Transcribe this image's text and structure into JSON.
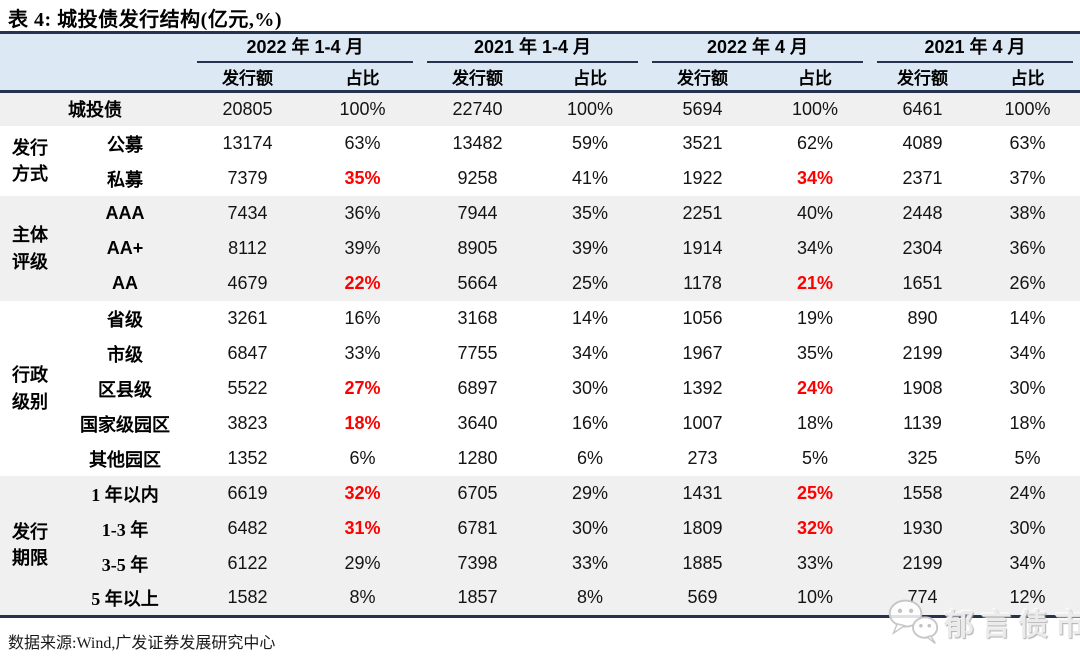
{
  "title": "表 4:  城投债发行结构(亿元,%)",
  "header": {
    "groups": [
      "2022 年 1-4 月",
      "2021 年 1-4 月",
      "2022 年 4 月",
      "2021 年 4 月"
    ],
    "sub": [
      "发行额",
      "占比"
    ]
  },
  "table": {
    "groups": [
      {
        "category": "",
        "rows": [
          {
            "label": "城投债",
            "values": [
              "20805",
              "100%",
              "22740",
              "100%",
              "5694",
              "100%",
              "6461",
              "100%"
            ],
            "red": []
          }
        ]
      },
      {
        "category": "发行\n方式",
        "rows": [
          {
            "label": "公募",
            "values": [
              "13174",
              "63%",
              "13482",
              "59%",
              "3521",
              "62%",
              "4089",
              "63%"
            ],
            "red": []
          },
          {
            "label": "私募",
            "values": [
              "7379",
              "35%",
              "9258",
              "41%",
              "1922",
              "34%",
              "2371",
              "37%"
            ],
            "red": [
              1,
              5
            ]
          }
        ]
      },
      {
        "category": "主体\n评级",
        "rows": [
          {
            "label": "AAA",
            "values": [
              "7434",
              "36%",
              "7944",
              "35%",
              "2251",
              "40%",
              "2448",
              "38%"
            ],
            "red": []
          },
          {
            "label": "AA+",
            "values": [
              "8112",
              "39%",
              "8905",
              "39%",
              "1914",
              "34%",
              "2304",
              "36%"
            ],
            "red": []
          },
          {
            "label": "AA",
            "values": [
              "4679",
              "22%",
              "5664",
              "25%",
              "1178",
              "21%",
              "1651",
              "26%"
            ],
            "red": [
              1,
              5
            ]
          }
        ]
      },
      {
        "category": "行政\n级别",
        "rows": [
          {
            "label": "省级",
            "values": [
              "3261",
              "16%",
              "3168",
              "14%",
              "1056",
              "19%",
              "890",
              "14%"
            ],
            "red": []
          },
          {
            "label": "市级",
            "values": [
              "6847",
              "33%",
              "7755",
              "34%",
              "1967",
              "35%",
              "2199",
              "34%"
            ],
            "red": []
          },
          {
            "label": "区县级",
            "values": [
              "5522",
              "27%",
              "6897",
              "30%",
              "1392",
              "24%",
              "1908",
              "30%"
            ],
            "red": [
              1,
              5
            ]
          },
          {
            "label": "国家级园区",
            "values": [
              "3823",
              "18%",
              "3640",
              "16%",
              "1007",
              "18%",
              "1139",
              "18%"
            ],
            "red": [
              1
            ]
          },
          {
            "label": "其他园区",
            "values": [
              "1352",
              "6%",
              "1280",
              "6%",
              "273",
              "5%",
              "325",
              "5%"
            ],
            "red": []
          }
        ]
      },
      {
        "category": "发行\n期限",
        "rows": [
          {
            "label": "1 年以内",
            "values": [
              "6619",
              "32%",
              "6705",
              "29%",
              "1431",
              "25%",
              "1558",
              "24%"
            ],
            "red": [
              1,
              5
            ]
          },
          {
            "label": "1-3 年",
            "values": [
              "6482",
              "31%",
              "6781",
              "30%",
              "1809",
              "32%",
              "1930",
              "30%"
            ],
            "red": [
              1,
              5
            ]
          },
          {
            "label": "3-5 年",
            "values": [
              "6122",
              "29%",
              "7398",
              "33%",
              "1885",
              "33%",
              "2199",
              "34%"
            ],
            "red": []
          },
          {
            "label": "5 年以上",
            "values": [
              "1582",
              "8%",
              "1857",
              "8%",
              "569",
              "10%",
              "774",
              "12%"
            ],
            "red": []
          }
        ]
      }
    ]
  },
  "footer": {
    "source": "数据来源:Wind,广发证券发展研究中心"
  },
  "watermark": {
    "text": "郁言债市"
  },
  "colors": {
    "header_bg": "#dce9f5",
    "rule_navy": "#25334e",
    "band_gray": "#f0f0f0",
    "highlight_red": "#ff0000"
  }
}
